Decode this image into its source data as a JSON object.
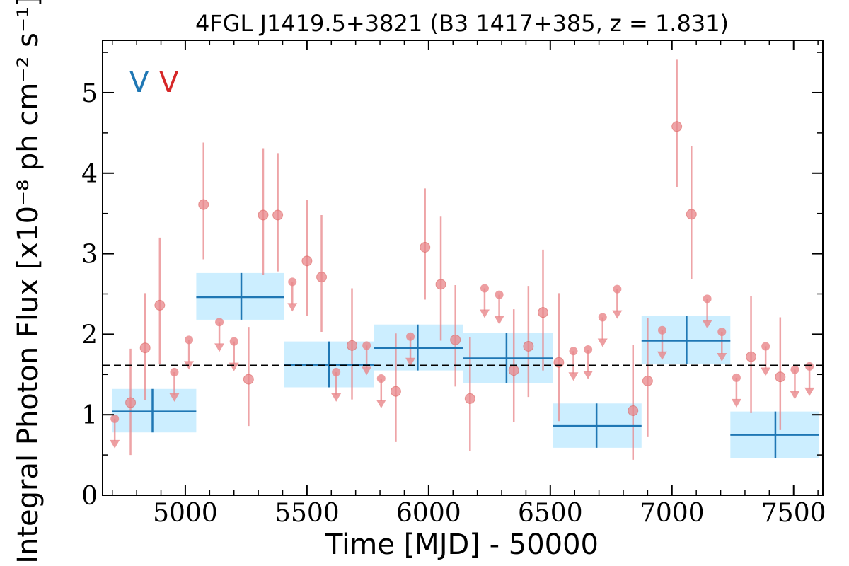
{
  "chart_data": {
    "type": "scatter",
    "title": "4FGL J1419.5+3821 (B3 1417+385, z = 1.831)",
    "xlabel": "Time [MJD] - 50000",
    "ylabel": "Integral Photon Flux [x10⁻⁸ ph cm⁻² s⁻¹]",
    "xlim": [
      4660,
      7620
    ],
    "ylim": [
      0,
      5.65
    ],
    "x_ticks": [
      5000,
      5500,
      6000,
      6500,
      7000,
      7500
    ],
    "y_ticks": [
      0,
      1,
      2,
      3,
      4,
      5
    ],
    "reference_level": 1.61,
    "legend": {
      "placement": "top-left",
      "markers": [
        "V",
        "V"
      ],
      "colors": [
        "#1f77b4",
        "#d62728"
      ]
    },
    "colors": {
      "long_bins": "#1f77b4",
      "long_bin_band": "#cceeff",
      "short_bins": "#e8868a",
      "reference_line": "#000000"
    },
    "series": [
      {
        "role": "long-bins",
        "points": [
          {
            "x": 4865,
            "x0": 4700,
            "x1": 5045,
            "y": 1.04,
            "ylo": 0.78,
            "yhi": 1.32
          },
          {
            "x": 5230,
            "x0": 5045,
            "x1": 5405,
            "y": 2.46,
            "ylo": 2.18,
            "yhi": 2.76
          },
          {
            "x": 5590,
            "x0": 5405,
            "x1": 5775,
            "y": 1.62,
            "ylo": 1.34,
            "yhi": 1.91
          },
          {
            "x": 5955,
            "x0": 5775,
            "x1": 6140,
            "y": 1.83,
            "ylo": 1.55,
            "yhi": 2.12
          },
          {
            "x": 6320,
            "x0": 6140,
            "x1": 6510,
            "y": 1.7,
            "ylo": 1.39,
            "yhi": 2.02
          },
          {
            "x": 6690,
            "x0": 6510,
            "x1": 6875,
            "y": 0.86,
            "ylo": 0.59,
            "yhi": 1.14
          },
          {
            "x": 7060,
            "x0": 6875,
            "x1": 7240,
            "y": 1.92,
            "ylo": 1.63,
            "yhi": 2.23
          },
          {
            "x": 7425,
            "x0": 7240,
            "x1": 7605,
            "y": 0.75,
            "ylo": 0.46,
            "yhi": 1.04
          }
        ]
      },
      {
        "role": "short-bins",
        "points": [
          {
            "x": 4710,
            "y": 0.95,
            "upper_limit": true
          },
          {
            "x": 4775,
            "y": 1.15,
            "ylo": 0.5,
            "yhi": 1.82
          },
          {
            "x": 4835,
            "y": 1.83,
            "ylo": 1.18,
            "yhi": 2.51
          },
          {
            "x": 4895,
            "y": 2.36,
            "ylo": 1.63,
            "yhi": 3.2
          },
          {
            "x": 4955,
            "y": 1.53,
            "upper_limit": true
          },
          {
            "x": 5015,
            "y": 1.93,
            "upper_limit": true
          },
          {
            "x": 5075,
            "y": 3.61,
            "ylo": 2.93,
            "yhi": 4.38
          },
          {
            "x": 5140,
            "y": 2.15,
            "upper_limit": true
          },
          {
            "x": 5200,
            "y": 1.91,
            "upper_limit": true
          },
          {
            "x": 5260,
            "y": 1.44,
            "ylo": 0.86,
            "yhi": 2.09
          },
          {
            "x": 5320,
            "y": 3.48,
            "ylo": 2.74,
            "yhi": 4.31
          },
          {
            "x": 5380,
            "y": 3.48,
            "ylo": 2.78,
            "yhi": 4.25
          },
          {
            "x": 5440,
            "y": 2.65,
            "upper_limit": true
          },
          {
            "x": 5500,
            "y": 2.91,
            "ylo": 2.23,
            "yhi": 3.67
          },
          {
            "x": 5560,
            "y": 2.71,
            "ylo": 2.03,
            "yhi": 3.48
          },
          {
            "x": 5620,
            "y": 1.53,
            "upper_limit": true
          },
          {
            "x": 5685,
            "y": 1.86,
            "ylo": 1.19,
            "yhi": 2.57
          },
          {
            "x": 5745,
            "y": 1.86,
            "upper_limit": true
          },
          {
            "x": 5805,
            "y": 1.45,
            "upper_limit": true
          },
          {
            "x": 5865,
            "y": 1.29,
            "ylo": 0.66,
            "yhi": 2.01
          },
          {
            "x": 5925,
            "y": 1.97,
            "upper_limit": true
          },
          {
            "x": 5985,
            "y": 3.08,
            "ylo": 2.43,
            "yhi": 3.81
          },
          {
            "x": 6050,
            "y": 2.62,
            "ylo": 1.92,
            "yhi": 3.46
          },
          {
            "x": 6110,
            "y": 1.93,
            "ylo": 1.35,
            "yhi": 2.61
          },
          {
            "x": 6170,
            "y": 1.2,
            "ylo": 0.55,
            "yhi": 1.96
          },
          {
            "x": 6230,
            "y": 2.57,
            "upper_limit": true
          },
          {
            "x": 6290,
            "y": 2.49,
            "upper_limit": true
          },
          {
            "x": 6350,
            "y": 1.55,
            "ylo": 0.91,
            "yhi": 2.31
          },
          {
            "x": 6410,
            "y": 1.85,
            "ylo": 1.22,
            "yhi": 2.6
          },
          {
            "x": 6470,
            "y": 2.27,
            "ylo": 1.55,
            "yhi": 3.05
          },
          {
            "x": 6535,
            "y": 1.65,
            "ylo": 0.92,
            "yhi": 2.51
          },
          {
            "x": 6595,
            "y": 1.79,
            "upper_limit": true
          },
          {
            "x": 6655,
            "y": 1.81,
            "upper_limit": true
          },
          {
            "x": 6715,
            "y": 2.21,
            "upper_limit": true
          },
          {
            "x": 6775,
            "y": 2.56,
            "upper_limit": true
          },
          {
            "x": 6840,
            "y": 1.05,
            "ylo": 0.44,
            "yhi": 1.87
          },
          {
            "x": 6900,
            "y": 1.42,
            "ylo": 0.73,
            "yhi": 2.2
          },
          {
            "x": 6960,
            "y": 2.05,
            "upper_limit": true
          },
          {
            "x": 7020,
            "y": 4.58,
            "ylo": 3.83,
            "yhi": 5.41
          },
          {
            "x": 7080,
            "y": 3.49,
            "ylo": 2.68,
            "yhi": 4.34
          },
          {
            "x": 7145,
            "y": 2.44,
            "upper_limit": true
          },
          {
            "x": 7205,
            "y": 2.03,
            "upper_limit": true
          },
          {
            "x": 7265,
            "y": 1.46,
            "upper_limit": true
          },
          {
            "x": 7325,
            "y": 1.72,
            "ylo": 1.02,
            "yhi": 2.47
          },
          {
            "x": 7385,
            "y": 1.85,
            "upper_limit": true
          },
          {
            "x": 7445,
            "y": 1.47,
            "ylo": 0.81,
            "yhi": 2.21
          },
          {
            "x": 7505,
            "y": 1.56,
            "upper_limit": true
          },
          {
            "x": 7565,
            "y": 1.6,
            "upper_limit": true
          }
        ]
      }
    ]
  }
}
